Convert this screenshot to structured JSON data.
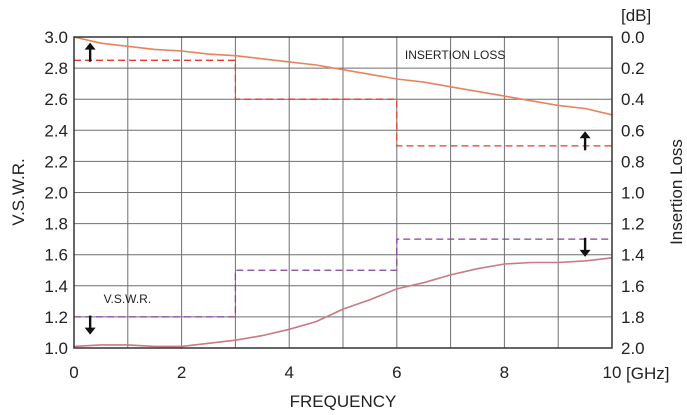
{
  "chart_data": {
    "type": "line",
    "xlabel": "FREQUENCY",
    "x_unit": "[GHz]",
    "ylabel_left": "V.S.W.R.",
    "ylabel_right": "Insertion Loss",
    "y_right_unit": "[dB]",
    "xlim": [
      0,
      10
    ],
    "ylim_left": [
      1.0,
      3.0
    ],
    "ylim_right": [
      0.0,
      2.0
    ],
    "y_right_inverted": true,
    "grid": true,
    "x_ticks": [
      "0",
      "2",
      "4",
      "6",
      "8",
      "10"
    ],
    "y_left_ticks": [
      "3.0",
      "2.8",
      "2.6",
      "2.4",
      "2.2",
      "2.0",
      "1.8",
      "1.6",
      "1.4",
      "1.2",
      "1.0"
    ],
    "y_right_ticks": [
      "0.0",
      "0.2",
      "0.4",
      "0.6",
      "0.8",
      "1.0",
      "1.2",
      "1.4",
      "1.6",
      "1.8",
      "2.0"
    ],
    "annotations": [
      {
        "text": "INSERTION LOSS",
        "x": 6.15,
        "y_left": 2.86
      },
      {
        "text": "V.S.W.R.",
        "x": 0.55,
        "y_left": 1.29
      }
    ],
    "series": [
      {
        "name": "INSERTION LOSS",
        "axis": "right",
        "color": "#e8835e",
        "x": [
          0,
          0.5,
          1,
          1.5,
          2,
          2.5,
          3,
          3.5,
          4,
          4.5,
          5,
          5.5,
          6,
          6.5,
          7,
          7.5,
          8,
          8.5,
          9,
          9.5,
          10
        ],
        "y": [
          0.0,
          0.04,
          0.06,
          0.08,
          0.09,
          0.11,
          0.12,
          0.14,
          0.16,
          0.18,
          0.21,
          0.24,
          0.27,
          0.29,
          0.32,
          0.35,
          0.38,
          0.41,
          0.44,
          0.46,
          0.5
        ]
      },
      {
        "name": "V.S.W.R.",
        "axis": "left",
        "color": "#c97a82",
        "x": [
          0,
          0.5,
          1,
          1.5,
          2,
          2.5,
          3,
          3.5,
          4,
          4.5,
          5,
          5.5,
          6,
          6.5,
          7,
          7.5,
          8,
          8.5,
          9,
          9.5,
          10
        ],
        "y": [
          1.01,
          1.02,
          1.02,
          1.01,
          1.01,
          1.03,
          1.05,
          1.08,
          1.12,
          1.17,
          1.25,
          1.31,
          1.38,
          1.42,
          1.47,
          1.51,
          1.54,
          1.55,
          1.55,
          1.56,
          1.58
        ]
      }
    ],
    "limits": [
      {
        "name": "insertion-loss-limit",
        "axis": "right",
        "color": "#e23c2c",
        "steps": [
          [
            0,
            3,
            0.15
          ],
          [
            3,
            6,
            0.4
          ],
          [
            6,
            10,
            0.7
          ]
        ]
      },
      {
        "name": "vswr-limit",
        "axis": "left",
        "color": "#8a3f9e",
        "steps": [
          [
            0,
            3,
            1.2
          ],
          [
            3,
            6,
            1.5
          ],
          [
            6,
            10,
            1.7
          ]
        ]
      }
    ],
    "arrows": [
      {
        "name": "arrow-up-insertion-left",
        "x": 0.3,
        "y_left": 2.88,
        "dir": "up"
      },
      {
        "name": "arrow-up-insertion-right",
        "x": 9.5,
        "y_left": 2.31,
        "dir": "up"
      },
      {
        "name": "arrow-down-vswr-left",
        "x": 0.3,
        "y_left": 1.17,
        "dir": "down"
      },
      {
        "name": "arrow-down-vswr-right",
        "x": 9.5,
        "y_left": 1.67,
        "dir": "down"
      }
    ]
  }
}
